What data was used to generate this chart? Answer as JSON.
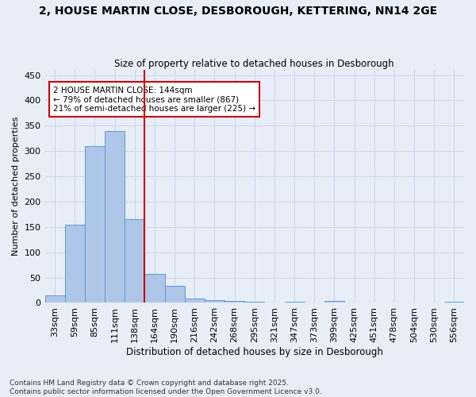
{
  "title_line1": "2, HOUSE MARTIN CLOSE, DESBOROUGH, KETTERING, NN14 2GE",
  "title_line2": "Size of property relative to detached houses in Desborough",
  "xlabel": "Distribution of detached houses by size in Desborough",
  "ylabel": "Number of detached properties",
  "categories": [
    "33sqm",
    "59sqm",
    "85sqm",
    "111sqm",
    "138sqm",
    "164sqm",
    "190sqm",
    "216sqm",
    "242sqm",
    "268sqm",
    "295sqm",
    "321sqm",
    "347sqm",
    "373sqm",
    "399sqm",
    "425sqm",
    "451sqm",
    "478sqm",
    "504sqm",
    "530sqm",
    "556sqm"
  ],
  "values": [
    15,
    155,
    310,
    340,
    165,
    57,
    33,
    8,
    6,
    4,
    3,
    0,
    3,
    0,
    4,
    0,
    0,
    0,
    0,
    0,
    3
  ],
  "bar_color": "#aec6e8",
  "bar_edge_color": "#5b9bd5",
  "grid_color": "#c8d4e8",
  "background_color": "#e8eef8",
  "annotation_text": "2 HOUSE MARTIN CLOSE: 144sqm\n← 79% of detached houses are smaller (867)\n21% of semi-detached houses are larger (225) →",
  "vline_x": 4.5,
  "annotation_box_color": "#ffffff",
  "annotation_box_edge": "#cc0000",
  "annotation_text_color": "#000000",
  "vline_color": "#cc0000",
  "ylim": [
    0,
    460
  ],
  "yticks": [
    0,
    50,
    100,
    150,
    200,
    250,
    300,
    350,
    400,
    450
  ],
  "footer_line1": "Contains HM Land Registry data © Crown copyright and database right 2025.",
  "footer_line2": "Contains public sector information licensed under the Open Government Licence v3.0."
}
